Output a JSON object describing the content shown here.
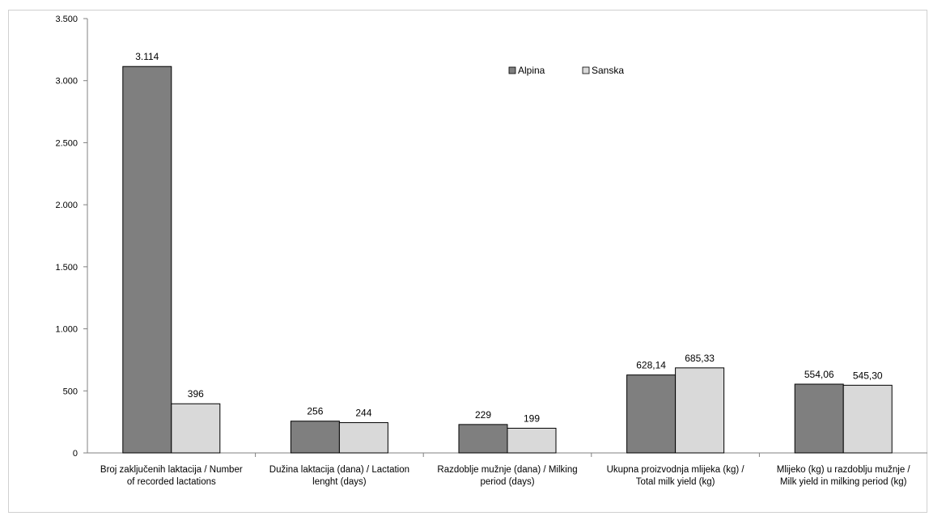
{
  "chart_data": {
    "type": "bar",
    "title": "",
    "xlabel": "",
    "ylabel": "",
    "ylim": [
      0,
      3500
    ],
    "y_ticks": [
      0,
      500,
      1000,
      1500,
      2000,
      2500,
      3000,
      3500
    ],
    "y_tick_labels": [
      "0",
      "500",
      "1.000",
      "1.500",
      "2.000",
      "2.500",
      "3.000",
      "3.500"
    ],
    "grid": false,
    "legend_position": "top-center",
    "categories": [
      [
        "Broj zaključenih laktacija / Number",
        "of recorded lactations"
      ],
      [
        "Dužina laktacija (dana) / Lactation",
        "lenght (days)"
      ],
      [
        "Razdoblje mužnje (dana) / Milking",
        "period (days)"
      ],
      [
        "Ukupna proizvodnja mlijeka (kg) /",
        "Total milk yield (kg)"
      ],
      [
        "Mlijeko (kg) u razdoblju mužnje /",
        "Milk yield in milking period (kg)"
      ]
    ],
    "series": [
      {
        "name": "Alpina",
        "color": "#7f7f7f",
        "values": [
          3114,
          256,
          229,
          628.14,
          554.06
        ],
        "labels": [
          "3.114",
          "256",
          "229",
          "628,14",
          "554,06"
        ]
      },
      {
        "name": "Sanska",
        "color": "#d9d9d9",
        "values": [
          396,
          244,
          199,
          685.33,
          545.3
        ],
        "labels": [
          "396",
          "244",
          "199",
          "685,33",
          "545,30"
        ]
      }
    ]
  }
}
